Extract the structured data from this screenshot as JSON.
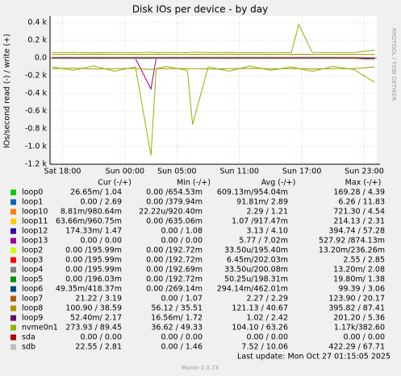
{
  "chart_data": {
    "type": "line",
    "title": "Disk IOs per device - by day",
    "ylabel": "IOs/second read (-) / write (+)",
    "side_label": "RRDTOOL / TOBI OETIKER",
    "columns": [
      "Cur (-/+)",
      "Min (-/+)",
      "Avg (-/+)",
      "Max (-/+)"
    ],
    "last_update": "Last update: Mon Oct 27 01:15:05 2025",
    "footer": "Munin 2.0.73",
    "xlim": [
      16.8,
      48.2
    ],
    "xticks": [
      {
        "value": 18,
        "label": "Sat 18:00"
      },
      {
        "value": 24,
        "label": "Sun 00:00"
      },
      {
        "value": 29,
        "label": "Sun 05:00"
      },
      {
        "value": 35,
        "label": "Sun 11:00"
      },
      {
        "value": 41,
        "label": "Sun 17:00"
      },
      {
        "value": 47,
        "label": "Sun 23:00"
      }
    ],
    "ylim": [
      -1200,
      400
    ],
    "yticks": [
      {
        "value": 400,
        "label": "0.4 k"
      },
      {
        "value": 200,
        "label": "0.2 k"
      },
      {
        "value": 0,
        "label": "0.0"
      },
      {
        "value": -200,
        "label": "-0.2 k"
      },
      {
        "value": -400,
        "label": "-0.4 k"
      },
      {
        "value": -600,
        "label": "-0.6 k"
      },
      {
        "value": -800,
        "label": "-0.8 k"
      },
      {
        "value": -1000,
        "label": "-1.0 k"
      },
      {
        "value": -1200,
        "label": "-1.2 k"
      }
    ],
    "grid": true,
    "x": [
      17,
      19,
      21,
      23,
      25,
      26.5,
      27,
      28,
      30,
      30.5,
      32,
      34,
      36,
      38,
      40,
      40.7,
      42,
      44,
      46,
      48
    ],
    "series": [
      {
        "name": "loop0",
        "color": "#00cc00",
        "cur": "26.65m/ 1.04",
        "min": "0.00 /654.53m",
        "avg": "609.13m/954.04m",
        "max": "169.28 / 4.39",
        "write": [
          1,
          1,
          1,
          1,
          1,
          1,
          1,
          1,
          1,
          1,
          1,
          1,
          1,
          1,
          1,
          1,
          1,
          1,
          1,
          1
        ],
        "read": [
          0,
          0,
          0,
          0,
          0,
          0,
          0,
          0,
          0,
          0,
          0,
          0,
          0,
          0,
          0,
          0,
          0,
          0,
          0,
          0
        ]
      },
      {
        "name": "loop1",
        "color": "#0066b3",
        "cur": "0.00 / 2.69",
        "min": "0.00 /379.94m",
        "avg": "91.81m/ 2.89",
        "max": "6.26 / 11.83",
        "write": [
          3,
          3,
          3,
          3,
          3,
          3,
          3,
          3,
          3,
          3,
          3,
          3,
          3,
          3,
          3,
          3,
          3,
          3,
          3,
          3
        ],
        "read": [
          0,
          0,
          0,
          0,
          0,
          0,
          0,
          0,
          0,
          0,
          0,
          0,
          0,
          0,
          0,
          0,
          0,
          0,
          0,
          0
        ]
      },
      {
        "name": "loop10",
        "color": "#ff8000",
        "cur": "8.81m/980.64m",
        "min": "22.22u/920.40m",
        "avg": "2.29 / 1.21",
        "max": "721.30 / 4.54",
        "write": [
          1,
          1,
          1,
          1,
          1,
          1,
          1,
          1,
          1,
          1,
          1,
          1,
          1,
          1,
          1,
          1,
          1,
          1,
          1,
          1
        ],
        "read": [
          -2,
          -2,
          -2,
          -2,
          -2,
          -2,
          -2,
          -2,
          -2,
          -2,
          -2,
          -2,
          -2,
          -2,
          -2,
          -2,
          -2,
          -2,
          -2,
          -2
        ]
      },
      {
        "name": "loop11",
        "color": "#ffcc00",
        "cur": "63.66m/960.75m",
        "min": "0.00 /635.06m",
        "avg": "1.07 /917.47m",
        "max": "214.13 / 2.31",
        "write": [
          1,
          1,
          1,
          1,
          1,
          1,
          1,
          1,
          1,
          1,
          1,
          1,
          1,
          1,
          1,
          1,
          1,
          1,
          1,
          1
        ],
        "read": [
          -1,
          -1,
          -1,
          -1,
          -1,
          -1,
          -1,
          -1,
          -1,
          -1,
          -1,
          -1,
          -1,
          -1,
          -1,
          -1,
          -1,
          -1,
          -1,
          -1
        ]
      },
      {
        "name": "loop12",
        "color": "#330099",
        "cur": "174.33m/ 1.47",
        "min": "0.00 / 1.08",
        "avg": "3.13 / 4.10",
        "max": "394.74 / 57.28",
        "write": [
          4,
          4,
          4,
          4,
          4,
          4,
          4,
          4,
          4,
          4,
          4,
          4,
          4,
          4,
          4,
          4,
          4,
          4,
          4,
          4
        ],
        "read": [
          -3,
          -3,
          -3,
          -3,
          -3,
          -3,
          -3,
          -3,
          -3,
          -3,
          -3,
          -3,
          -3,
          -3,
          -3,
          -3,
          -3,
          -3,
          -3,
          -3
        ]
      },
      {
        "name": "loop13",
        "color": "#990099",
        "cur": "0.00 / 0.00",
        "min": "0.00 / 0.00",
        "avg": "5.77 / 7.02m",
        "max": "527.92 /874.13m",
        "write": [
          0,
          0,
          0,
          0,
          0,
          0,
          0,
          0,
          0,
          0,
          0,
          0,
          0,
          0,
          0,
          0,
          0,
          0,
          0,
          0
        ],
        "read": [
          -5,
          -5,
          -5,
          -5,
          -5,
          -350,
          -5,
          -5,
          -5,
          -5,
          -5,
          -5,
          -5,
          -5,
          -5,
          -5,
          -5,
          -5,
          -5,
          -5
        ]
      },
      {
        "name": "loop2",
        "color": "#ccff00",
        "cur": "0.00 /195.99m",
        "min": "0.00 /192.72m",
        "avg": "33.50u/195.40m",
        "max": "13.20m/236.26m",
        "write": [
          0,
          0,
          0,
          0,
          0,
          0,
          0,
          0,
          0,
          0,
          0,
          0,
          0,
          0,
          0,
          0,
          0,
          0,
          0,
          0
        ],
        "read": [
          0,
          0,
          0,
          0,
          0,
          0,
          0,
          0,
          0,
          0,
          0,
          0,
          0,
          0,
          0,
          0,
          0,
          0,
          0,
          0
        ]
      },
      {
        "name": "loop3",
        "color": "#ff0000",
        "cur": "0.00 /195.99m",
        "min": "0.00 /192.72m",
        "avg": "6.45m/202.03m",
        "max": "2.55 / 2.85",
        "write": [
          0,
          0,
          0,
          0,
          0,
          0,
          0,
          0,
          0,
          0,
          0,
          0,
          0,
          0,
          0,
          0,
          0,
          0,
          0,
          0
        ],
        "read": [
          0,
          0,
          0,
          0,
          0,
          0,
          0,
          0,
          0,
          0,
          0,
          0,
          0,
          0,
          0,
          0,
          0,
          0,
          0,
          0
        ]
      },
      {
        "name": "loop4",
        "color": "#808080",
        "cur": "0.00 /195.99m",
        "min": "0.00 /192.69m",
        "avg": "33.50u/200.08m",
        "max": "13.20m/ 2.08",
        "write": [
          0,
          0,
          0,
          0,
          0,
          0,
          0,
          0,
          0,
          0,
          0,
          0,
          0,
          0,
          0,
          0,
          0,
          0,
          0,
          0
        ],
        "read": [
          0,
          0,
          0,
          0,
          0,
          0,
          0,
          0,
          0,
          0,
          0,
          0,
          0,
          0,
          0,
          0,
          0,
          0,
          0,
          0
        ]
      },
      {
        "name": "loop5",
        "color": "#008f00",
        "cur": "0.00 /196.03m",
        "min": "0.00 /192.72m",
        "avg": "50.25u/198.31m",
        "max": "19.80m/ 1.38",
        "write": [
          0,
          0,
          0,
          0,
          0,
          0,
          0,
          0,
          0,
          0,
          0,
          0,
          0,
          0,
          0,
          0,
          0,
          0,
          0,
          0
        ],
        "read": [
          0,
          0,
          0,
          0,
          0,
          0,
          0,
          0,
          0,
          0,
          0,
          0,
          0,
          0,
          0,
          0,
          0,
          0,
          0,
          0
        ]
      },
      {
        "name": "loop6",
        "color": "#00487d",
        "cur": "49.35m/418.37m",
        "min": "0.00 /269.14m",
        "avg": "294.14m/462.01m",
        "max": "99.39 / 3.06",
        "write": [
          0,
          0,
          0,
          0,
          0,
          0,
          0,
          0,
          0,
          0,
          0,
          0,
          0,
          0,
          0,
          0,
          0,
          0,
          0,
          0
        ],
        "read": [
          0,
          0,
          0,
          0,
          0,
          0,
          0,
          0,
          0,
          0,
          0,
          0,
          0,
          0,
          0,
          0,
          0,
          0,
          0,
          0
        ]
      },
      {
        "name": "loop7",
        "color": "#b35a00",
        "cur": "21.22 / 3.19",
        "min": "0.00 / 1.07",
        "avg": "2.27 / 2.29",
        "max": "123.90 / 20.17",
        "write": [
          3,
          3,
          3,
          3,
          3,
          3,
          3,
          3,
          3,
          3,
          3,
          3,
          3,
          3,
          3,
          3,
          3,
          3,
          3,
          3
        ],
        "read": [
          -3,
          -3,
          -3,
          -3,
          -3,
          -3,
          -3,
          -3,
          -3,
          -3,
          -3,
          -3,
          -3,
          -3,
          -3,
          -3,
          -3,
          -3,
          -3,
          -20
        ]
      },
      {
        "name": "loop8",
        "color": "#b38f00",
        "cur": "100.90 / 38.59",
        "min": "56.12 / 35.51",
        "avg": "121.13 / 40.67",
        "max": "395.82 / 87.41",
        "write": [
          40,
          40,
          42,
          40,
          41,
          40,
          42,
          40,
          40,
          41,
          40,
          42,
          40,
          41,
          40,
          42,
          40,
          40,
          41,
          39
        ],
        "read": [
          -120,
          -115,
          -125,
          -120,
          -118,
          -130,
          -120,
          -122,
          -118,
          -120,
          -125,
          -120,
          -118,
          -122,
          -120,
          -119,
          -124,
          -120,
          -121,
          -101
        ]
      },
      {
        "name": "loop9",
        "color": "#6b006b",
        "cur": "52.40m/ 2.17",
        "min": "16.56m/ 1.72",
        "avg": "1.02 / 2.42",
        "max": "201.20 / 5.36",
        "write": [
          2,
          2,
          2,
          2,
          2,
          2,
          2,
          2,
          2,
          2,
          2,
          2,
          2,
          2,
          2,
          2,
          2,
          2,
          2,
          2
        ],
        "read": [
          -1,
          -1,
          -1,
          -1,
          -1,
          -1,
          -1,
          -1,
          -1,
          -1,
          -1,
          -1,
          -1,
          -1,
          -1,
          -1,
          -1,
          -1,
          -1,
          -1
        ]
      },
      {
        "name": "nvme0n1",
        "color": "#8fb300",
        "cur": "273.93 / 89.45",
        "min": "36.62 / 49.33",
        "avg": "104.10 / 63.26",
        "max": "1.17k/382.60",
        "write": [
          60,
          62,
          58,
          61,
          60,
          65,
          60,
          62,
          60,
          66,
          60,
          62,
          58,
          61,
          60,
          380,
          62,
          60,
          61,
          89
        ],
        "read": [
          -100,
          -140,
          -90,
          -150,
          -100,
          -1100,
          -120,
          -95,
          -140,
          -750,
          -100,
          -150,
          -90,
          -140,
          -100,
          -120,
          -150,
          -95,
          -130,
          -274
        ]
      },
      {
        "name": "sda",
        "color": "#b30000",
        "cur": "0.00 / 0.00",
        "min": "0.00 / 0.00",
        "avg": "0.00 / 0.00",
        "max": "0.00 / 0.00",
        "write": [
          0,
          0,
          0,
          0,
          0,
          0,
          0,
          0,
          0,
          0,
          0,
          0,
          0,
          0,
          0,
          0,
          0,
          0,
          0,
          0
        ],
        "read": [
          0,
          0,
          0,
          0,
          0,
          0,
          0,
          0,
          0,
          0,
          0,
          0,
          0,
          0,
          0,
          0,
          0,
          0,
          0,
          0
        ]
      },
      {
        "name": "sdb",
        "color": "#bebebe",
        "cur": "22.55 / 2.81",
        "min": "0.00 / 1.46",
        "avg": "7.52 / 10.06",
        "max": "422.29 / 67.71",
        "write": [
          10,
          10,
          10,
          10,
          10,
          10,
          10,
          10,
          10,
          10,
          10,
          10,
          10,
          10,
          10,
          10,
          10,
          10,
          10,
          3
        ],
        "read": [
          -8,
          -8,
          -8,
          -8,
          -8,
          -8,
          -8,
          -8,
          -8,
          -8,
          -8,
          -8,
          -8,
          -8,
          -8,
          -8,
          -8,
          -8,
          -8,
          -23
        ]
      }
    ]
  }
}
